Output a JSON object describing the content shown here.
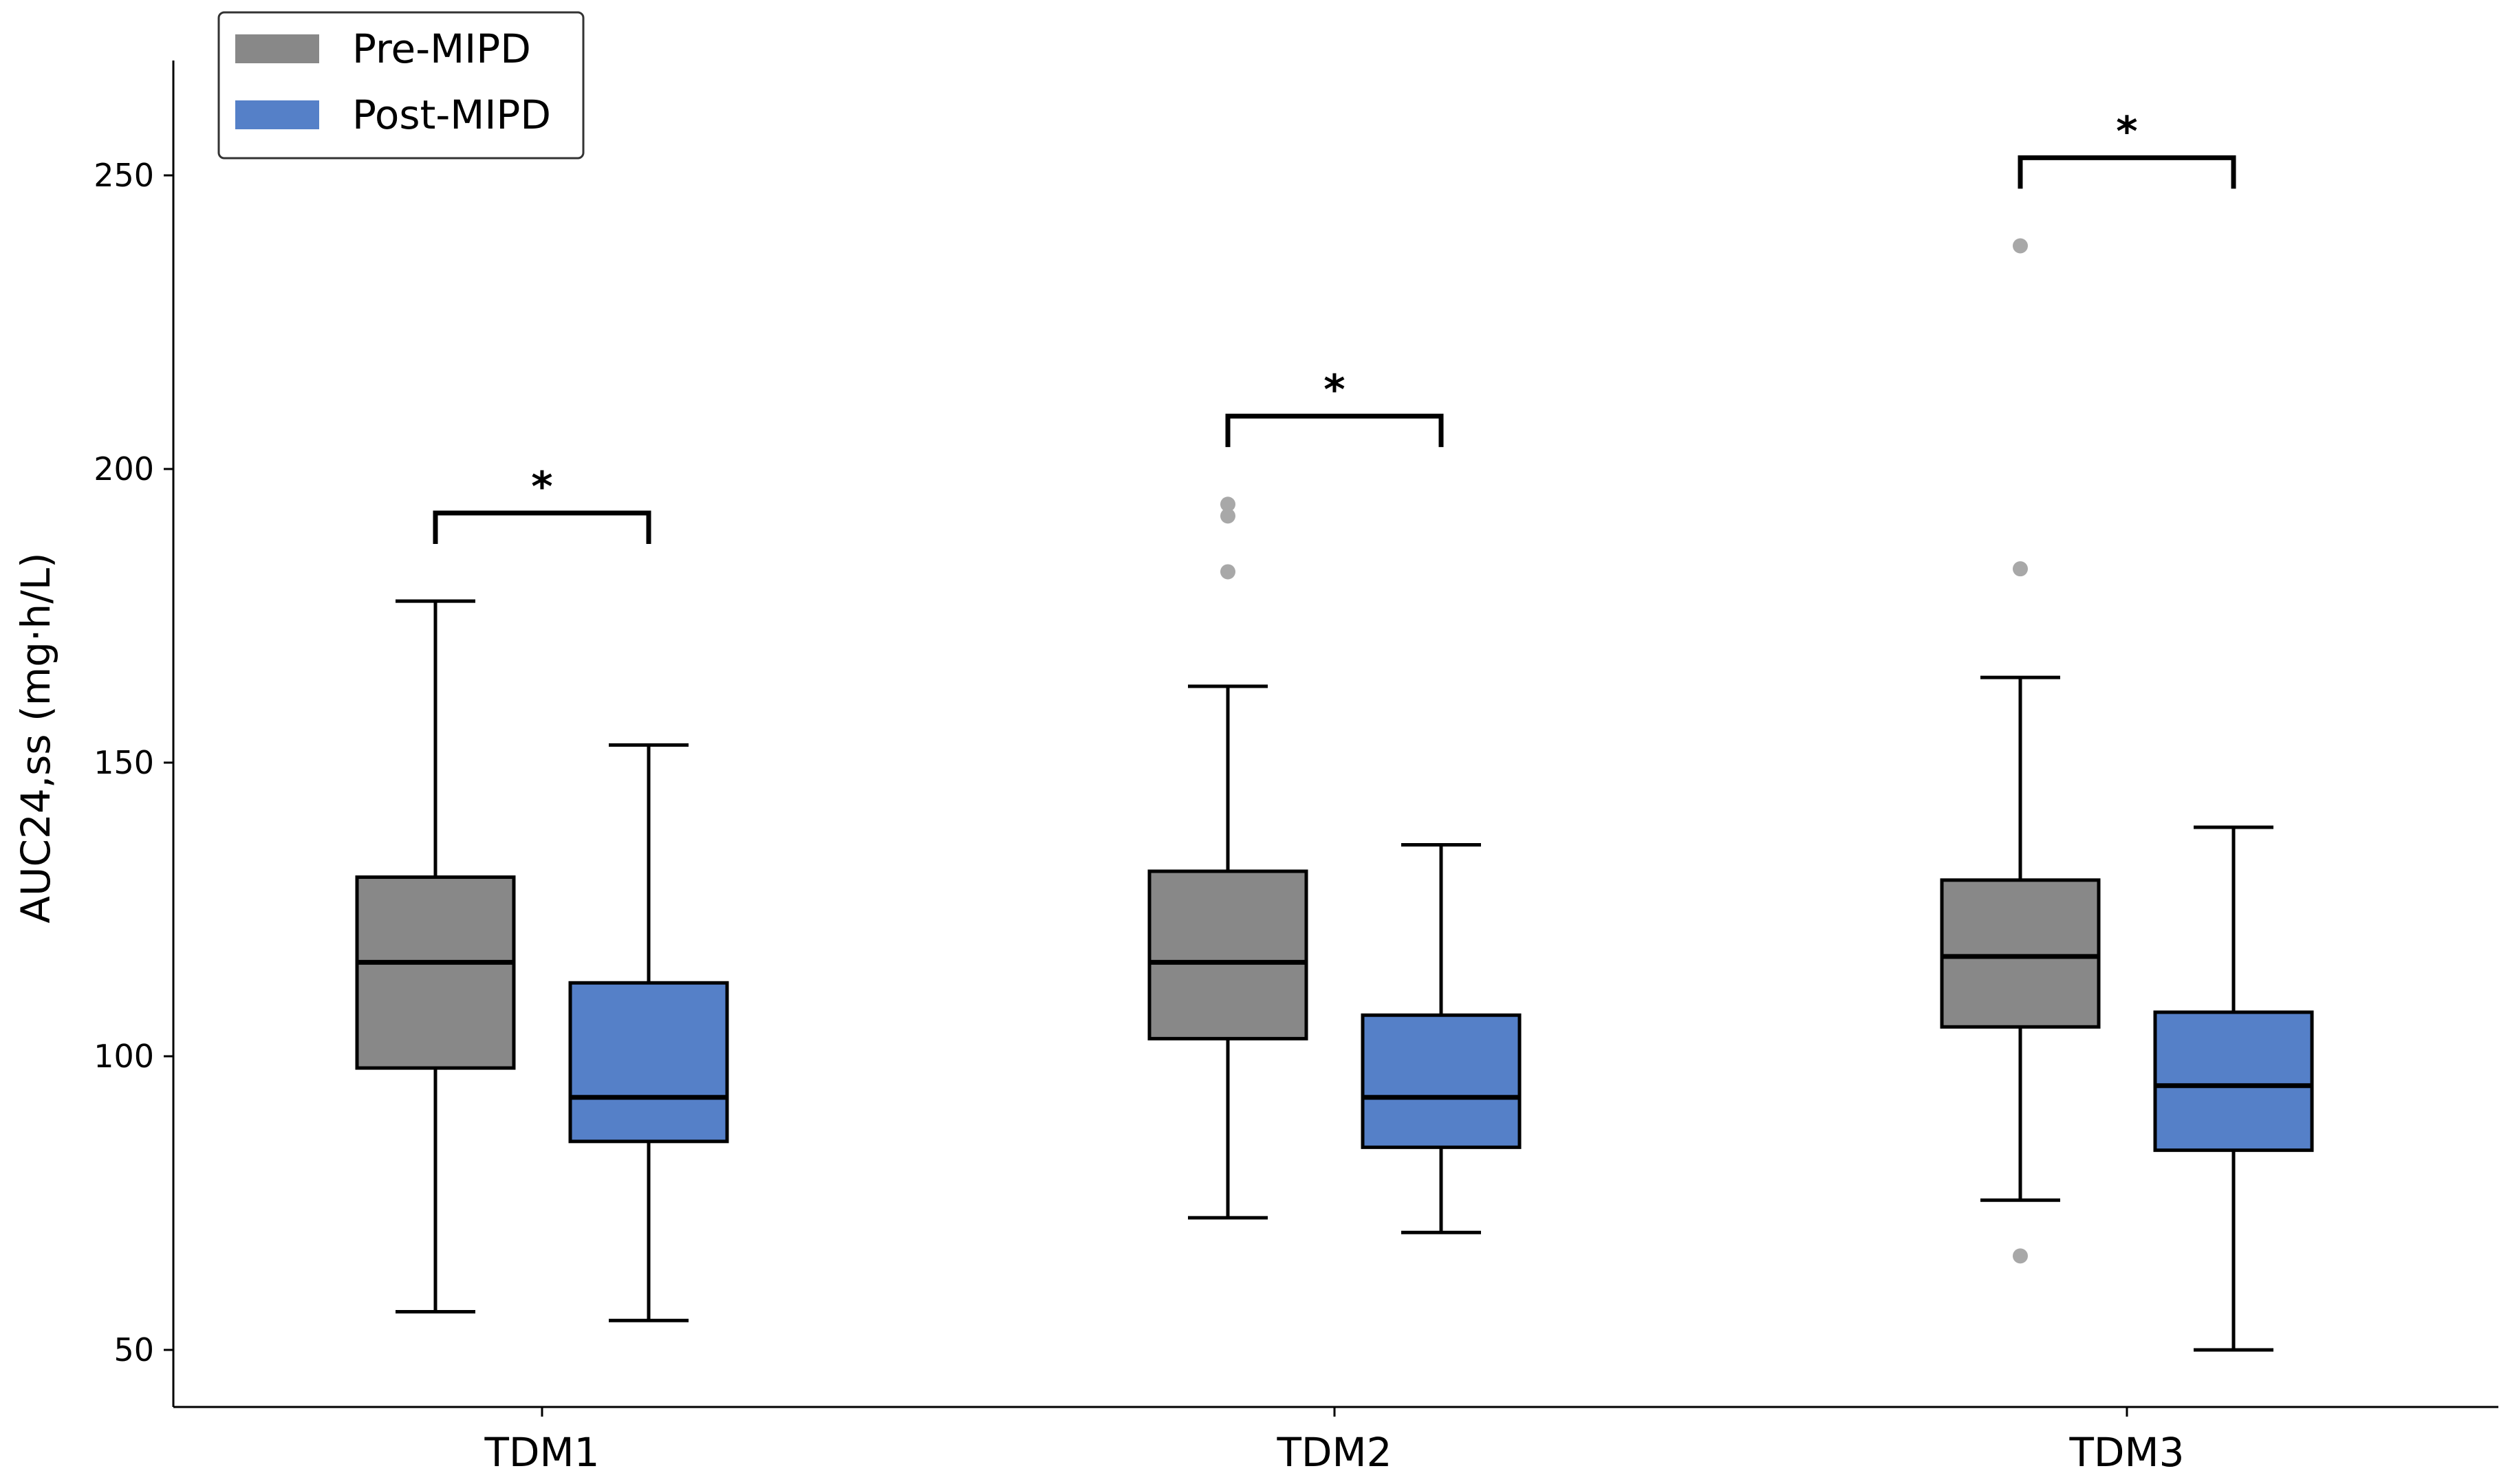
{
  "chart_data": {
    "type": "boxplot",
    "title": "",
    "xlabel": "",
    "ylabel": "AUC24,ss (mg·h/L)",
    "ylim": [
      40,
      270
    ],
    "yticks": [
      50,
      100,
      150,
      200,
      250
    ],
    "ytick_labels": [
      "50",
      "100",
      "150",
      "200",
      "250"
    ],
    "categories": [
      "TDM1",
      "TDM2",
      "TDM3"
    ],
    "legend": {
      "position": "top-left",
      "entries": [
        {
          "label": "Pre-MIPD",
          "color": "#888888"
        },
        {
          "label": "Post-MIPD",
          "color": "#5580C8"
        }
      ]
    },
    "series": [
      {
        "name": "Pre-MIPD",
        "color": "#888888",
        "boxes": [
          {
            "whislo": 56.5,
            "q1": 98,
            "med": 116,
            "q3": 130.5,
            "whishi": 177.5,
            "fliers": []
          },
          {
            "whislo": 72.5,
            "q1": 103,
            "med": 116,
            "q3": 131.5,
            "whishi": 163,
            "fliers": [
              182.5,
              192,
              194
            ]
          },
          {
            "whislo": 75.5,
            "q1": 105,
            "med": 117,
            "q3": 130,
            "whishi": 164.5,
            "fliers": [
              66,
              183,
              238
            ]
          }
        ]
      },
      {
        "name": "Post-MIPD",
        "color": "#5580C8",
        "boxes": [
          {
            "whislo": 55,
            "q1": 85.5,
            "med": 93,
            "q3": 112.5,
            "whishi": 153,
            "fliers": []
          },
          {
            "whislo": 70,
            "q1": 84.5,
            "med": 93,
            "q3": 107,
            "whishi": 136,
            "fliers": []
          },
          {
            "whislo": 50,
            "q1": 84,
            "med": 95,
            "q3": 107.5,
            "whishi": 139,
            "fliers": []
          }
        ]
      }
    ],
    "significance": [
      {
        "category": "TDM1",
        "label": "*",
        "y": 192.5
      },
      {
        "category": "TDM2",
        "label": "*",
        "y": 209
      },
      {
        "category": "TDM3",
        "label": "*",
        "y": 253
      }
    ],
    "flier_color": "#a8a8a8"
  }
}
